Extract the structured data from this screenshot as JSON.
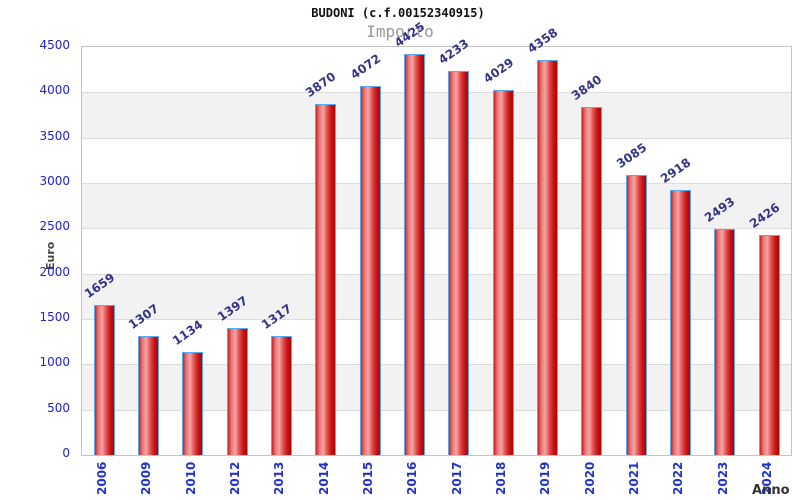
{
  "chart_data": {
    "type": "bar",
    "title": "BUDONI (c.f.00152340915)",
    "subtitle": "Importo",
    "xlabel": "Anno",
    "ylabel": "Euro",
    "categories": [
      "2006",
      "2009",
      "2010",
      "2012",
      "2013",
      "2014",
      "2015",
      "2016",
      "2017",
      "2018",
      "2019",
      "2020",
      "2021",
      "2022",
      "2023",
      "2024"
    ],
    "values": [
      1659,
      1307,
      1134,
      1397,
      1317,
      3870,
      4072,
      4425,
      4233,
      4029,
      4358,
      3840,
      3085,
      2918,
      2493,
      2426
    ],
    "ylim": [
      0,
      4500
    ],
    "ytick_step": 500,
    "grid": "horizontal-bands-alternating",
    "legend": "none",
    "bar_value_labels_rotation_deg": -35,
    "x_tick_rotation_deg": -90,
    "colors": {
      "bar_fill_dark": "#c41414",
      "bar_fill_light": "#f4a4a4",
      "bar_border": "#5aa7f2",
      "value_label": "#333388",
      "y_tick_label": "#2222cc",
      "x_tick_label": "#2233cc",
      "band_alt": "#f2f2f2",
      "gridline": "#dcdcdc",
      "frame": "#c4c4c4",
      "title": "#111111",
      "subtitle": "#999999",
      "axis_title": "#444444"
    }
  }
}
